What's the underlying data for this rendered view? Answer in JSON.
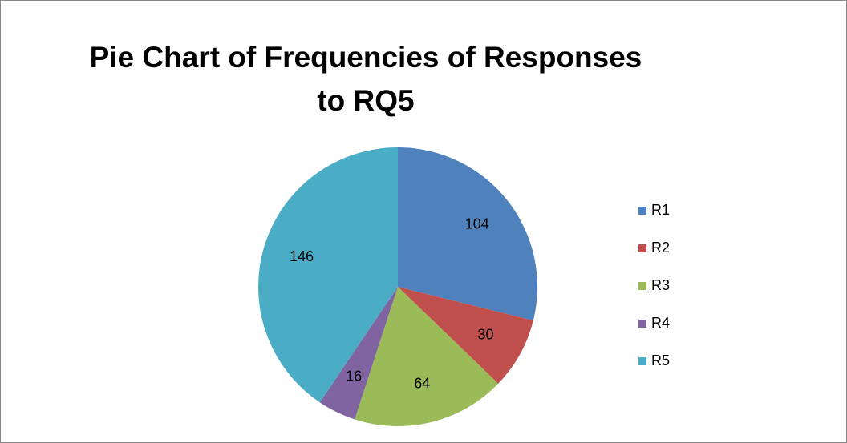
{
  "chart_data": {
    "type": "pie",
    "title": "Pie Chart of Frequencies of Responses to RQ5",
    "categories": [
      "R1",
      "R2",
      "R3",
      "R4",
      "R5"
    ],
    "values": [
      104,
      30,
      64,
      16,
      146
    ],
    "colors": [
      "#4f81bd",
      "#c0504d",
      "#9bbb59",
      "#8064a2",
      "#4bacc6"
    ],
    "legend": "right"
  }
}
